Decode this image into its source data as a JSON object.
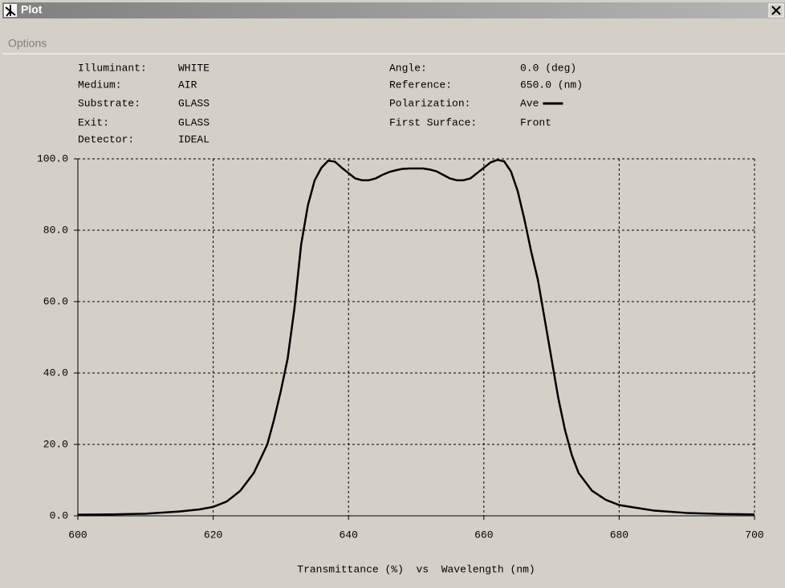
{
  "window": {
    "title": "Plot",
    "menu": [
      "Options"
    ]
  },
  "info": [
    {
      "label": "Illuminant:",
      "value": "WHITE"
    },
    {
      "label": "Medium:",
      "value": "AIR"
    },
    {
      "label": "Substrate:",
      "value": "GLASS"
    },
    {
      "label": "Exit:",
      "value": "GLASS"
    },
    {
      "label": "Detector:",
      "value": "IDEAL"
    },
    {
      "label": "Angle:",
      "value": "0.0 (deg)"
    },
    {
      "label": "Reference:",
      "value": "650.0 (nm)"
    },
    {
      "label": "Polarization:"
    },
    {
      "label": "First Surface:",
      "value": "Front"
    }
  ],
  "chart_data": {
    "type": "line",
    "xlabel": "Transmittance (%)  vs  Wavelength (nm)",
    "x": [
      600,
      605,
      610,
      615,
      618,
      620,
      622,
      624,
      626,
      628,
      629,
      630,
      631,
      632,
      633,
      634,
      635,
      636,
      637,
      638,
      639,
      640,
      641,
      642,
      643,
      644,
      645,
      646,
      647,
      648,
      649,
      650,
      651,
      652,
      653,
      654,
      655,
      656,
      657,
      658,
      659,
      660,
      661,
      662,
      663,
      664,
      665,
      666,
      667,
      668,
      669,
      670,
      671,
      672,
      673,
      674,
      676,
      678,
      680,
      685,
      690,
      695,
      700
    ],
    "series": [
      {
        "name": "Ave",
        "color": "#000000",
        "values": [
          0.3,
          0.4,
          0.6,
          1.2,
          1.8,
          2.5,
          4,
          7,
          12,
          20,
          27,
          35,
          44,
          58,
          76,
          87,
          94,
          97.5,
          99.5,
          99.2,
          97.5,
          96,
          94.5,
          94,
          94,
          94.5,
          95.5,
          96.3,
          96.8,
          97.2,
          97.3,
          97.3,
          97.3,
          97,
          96.5,
          95.5,
          94.5,
          94,
          94,
          94.5,
          96,
          97.5,
          99,
          99.7,
          99.3,
          96.5,
          91,
          83,
          74,
          66,
          55,
          44,
          33,
          24,
          17,
          12,
          7,
          4.5,
          3,
          1.5,
          0.8,
          0.5,
          0.4
        ]
      }
    ],
    "xlim": [
      600,
      700
    ],
    "ylim": [
      0,
      100
    ],
    "xticks": [
      600,
      620,
      640,
      660,
      680,
      700
    ],
    "yticks": [
      {
        "value": 0,
        "label": "0.0"
      },
      {
        "value": 20,
        "label": "20.0"
      },
      {
        "value": 40,
        "label": "40.0"
      },
      {
        "value": 60,
        "label": "60.0"
      },
      {
        "value": 80,
        "label": "80.0"
      },
      {
        "value": 100,
        "label": "100.0"
      }
    ],
    "grid": true
  }
}
